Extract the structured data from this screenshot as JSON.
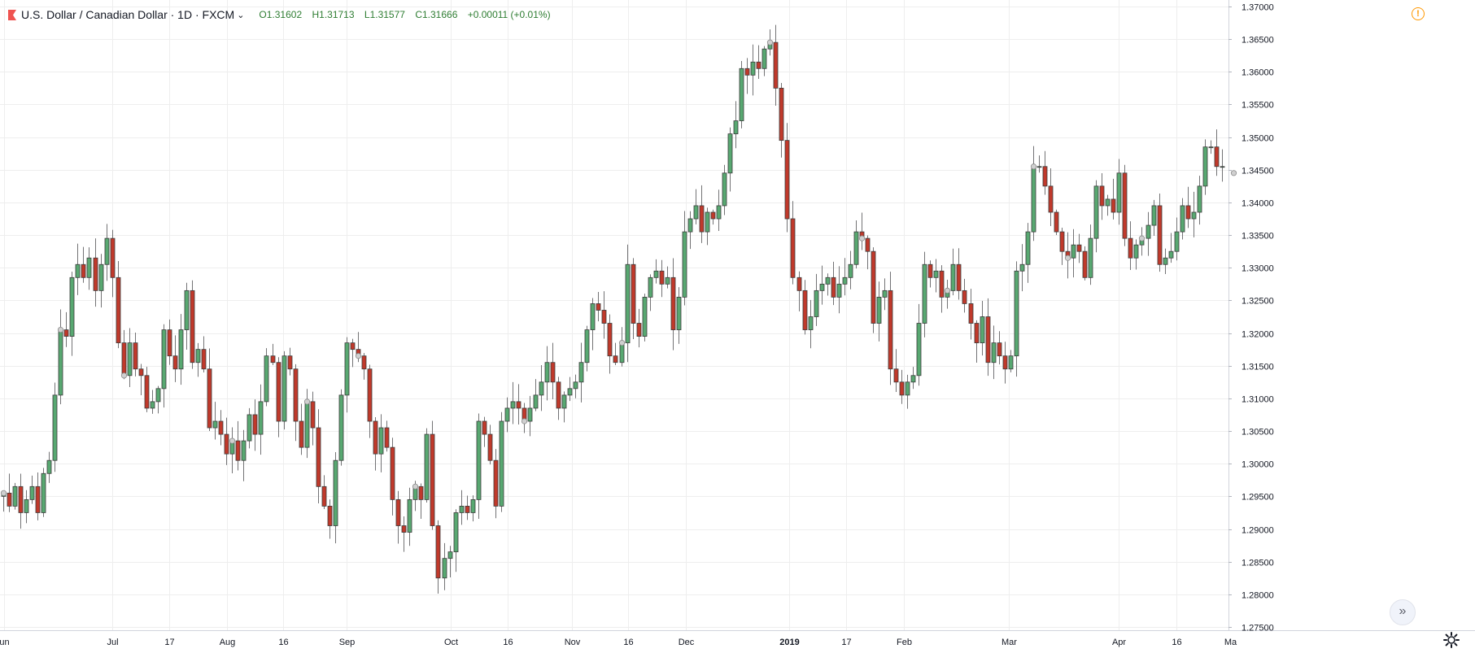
{
  "header": {
    "symbol_label": "U.S. Dollar / Canadian Dollar · 1D · FXCM",
    "open_label": "O",
    "open": "1.31602",
    "high_label": "H",
    "high": "1.31713",
    "low_label": "L",
    "low": "1.31577",
    "close_label": "C",
    "close": "1.31666",
    "change": "+0.00011 (+0.01%)",
    "flag_color": "#ef5350"
  },
  "icons": {
    "warning": "!",
    "scroll": "»",
    "settings": "gear-icon",
    "dropdown": "chevron-down-icon"
  },
  "colors": {
    "up": "#4caf50",
    "up_fill": "#58a871",
    "down": "#ef5350",
    "down_fill": "#c0392b",
    "grid": "#eeeeee",
    "axis": "#131722"
  },
  "chart_data": {
    "type": "candlestick",
    "title": "U.S. Dollar / Canadian Dollar · 1D · FXCM",
    "ylim": [
      1.2745,
      1.3705
    ],
    "y_ticks": [
      "1.27500",
      "1.28000",
      "1.28500",
      "1.29000",
      "1.29500",
      "1.30000",
      "1.30500",
      "1.31000",
      "1.31500",
      "1.32000",
      "1.32500",
      "1.33000",
      "1.33500",
      "1.34000",
      "1.34500",
      "1.35000",
      "1.35500",
      "1.36000",
      "1.36500",
      "1.37000"
    ],
    "x_ticks": [
      "un",
      "Jul",
      "17",
      "Aug",
      "16",
      "Sep",
      "Oct",
      "16",
      "Nov",
      "16",
      "Dec",
      "2019",
      "17",
      "Feb",
      "Mar",
      "Apr",
      "16",
      "Ma"
    ],
    "grid": true,
    "closes": [
      1.2955,
      1.2935,
      1.2965,
      1.2925,
      1.2945,
      1.2965,
      1.2925,
      1.2985,
      1.3005,
      1.3105,
      1.3205,
      1.3195,
      1.3285,
      1.3305,
      1.3285,
      1.3315,
      1.3265,
      1.3305,
      1.3345,
      1.3285,
      1.3185,
      1.3135,
      1.3185,
      1.3145,
      1.3135,
      1.3085,
      1.3095,
      1.3115,
      1.3205,
      1.3165,
      1.3145,
      1.3205,
      1.3265,
      1.3155,
      1.3175,
      1.3145,
      1.3055,
      1.3065,
      1.3045,
      1.3015,
      1.3035,
      1.3005,
      1.3035,
      1.3075,
      1.3045,
      1.3095,
      1.3165,
      1.3155,
      1.3065,
      1.3165,
      1.3145,
      1.3065,
      1.3025,
      1.3095,
      1.3055,
      1.2965,
      1.2935,
      1.2905,
      1.3005,
      1.3105,
      1.3185,
      1.3175,
      1.3165,
      1.3145,
      1.3065,
      1.3015,
      1.3055,
      1.3025,
      1.2945,
      1.2905,
      1.2895,
      1.2945,
      1.2965,
      1.2945,
      1.3045,
      1.2905,
      1.2825,
      1.2855,
      1.2865,
      1.2925,
      1.2935,
      1.2925,
      1.2945,
      1.3065,
      1.3045,
      1.3005,
      1.2935,
      1.3065,
      1.3085,
      1.3095,
      1.3085,
      1.3065,
      1.3085,
      1.3105,
      1.3125,
      1.3155,
      1.3125,
      1.3085,
      1.3105,
      1.3115,
      1.3125,
      1.3155,
      1.3205,
      1.3245,
      1.3235,
      1.3215,
      1.3165,
      1.3155,
      1.3185,
      1.3305,
      1.3215,
      1.3195,
      1.3255,
      1.3285,
      1.3295,
      1.3275,
      1.3285,
      1.3205,
      1.3255,
      1.3355,
      1.3375,
      1.3395,
      1.3355,
      1.3385,
      1.3375,
      1.3395,
      1.3445,
      1.3505,
      1.3525,
      1.3605,
      1.3595,
      1.3615,
      1.3605,
      1.3635,
      1.3645,
      1.3575,
      1.3495,
      1.3375,
      1.3285,
      1.3265,
      1.3205,
      1.3225,
      1.3265,
      1.3275,
      1.3285,
      1.3255,
      1.3275,
      1.3285,
      1.3305,
      1.3355,
      1.3345,
      1.3325,
      1.3215,
      1.3255,
      1.3265,
      1.3145,
      1.3125,
      1.3105,
      1.3125,
      1.3135,
      1.3215,
      1.3305,
      1.3285,
      1.3295,
      1.3255,
      1.3265,
      1.3305,
      1.3265,
      1.3245,
      1.3215,
      1.3185,
      1.3225,
      1.3155,
      1.3185,
      1.3165,
      1.3145,
      1.3165,
      1.3295,
      1.3305,
      1.3355,
      1.3455,
      1.3455,
      1.3425,
      1.3385,
      1.3355,
      1.3325,
      1.3315,
      1.3335,
      1.3325,
      1.3285,
      1.3345,
      1.3425,
      1.3395,
      1.3405,
      1.3385,
      1.3445,
      1.3345,
      1.3315,
      1.3335,
      1.3345,
      1.3365,
      1.3395,
      1.3305,
      1.3315,
      1.3325,
      1.3355,
      1.3395,
      1.3375,
      1.3385,
      1.3425,
      1.3485,
      1.3485,
      1.3455,
      1.3455,
      1.3395,
      1.3445
    ]
  }
}
